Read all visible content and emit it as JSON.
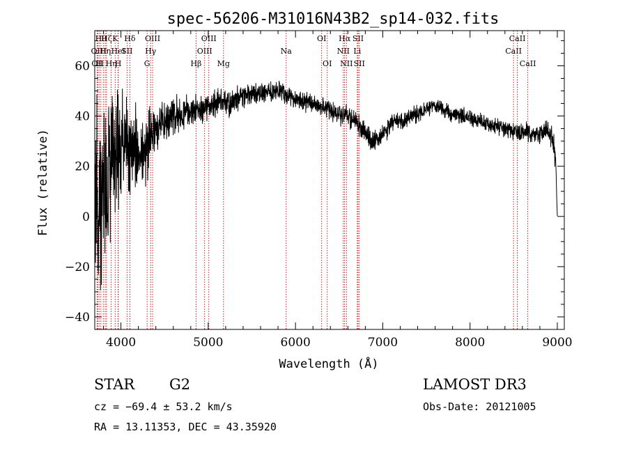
{
  "chart_data": {
    "type": "line",
    "title": "spec-56206-M31016N43B2_sp14-032.fits",
    "xlabel": "Wavelength (Å)",
    "ylabel": "Flux (relative)",
    "xlim": [
      3700,
      9080
    ],
    "ylim": [
      -45,
      74
    ],
    "xticks": [
      4000,
      5000,
      6000,
      7000,
      8000,
      9000
    ],
    "yticks": [
      -40,
      -20,
      0,
      20,
      40,
      60
    ],
    "grid": false,
    "series": [
      {
        "name": "spectrum",
        "color": "#000000",
        "continuum": [
          [
            3700,
            8
          ],
          [
            3800,
            15
          ],
          [
            3900,
            24
          ],
          [
            4000,
            28
          ],
          [
            4100,
            27
          ],
          [
            4200,
            26
          ],
          [
            4300,
            28
          ],
          [
            4400,
            35
          ],
          [
            4500,
            38
          ],
          [
            4600,
            40
          ],
          [
            4700,
            40
          ],
          [
            4800,
            42
          ],
          [
            4900,
            43
          ],
          [
            5000,
            44
          ],
          [
            5100,
            45
          ],
          [
            5200,
            45
          ],
          [
            5300,
            46
          ],
          [
            5400,
            48
          ],
          [
            5500,
            49
          ],
          [
            5600,
            49
          ],
          [
            5700,
            50
          ],
          [
            5800,
            50
          ],
          [
            5900,
            48
          ],
          [
            6000,
            46
          ],
          [
            6100,
            46
          ],
          [
            6200,
            45
          ],
          [
            6300,
            44
          ],
          [
            6400,
            42
          ],
          [
            6500,
            41
          ],
          [
            6600,
            40
          ],
          [
            6700,
            37
          ],
          [
            6800,
            33
          ],
          [
            6900,
            30
          ],
          [
            7000,
            33
          ],
          [
            7100,
            37
          ],
          [
            7200,
            38
          ],
          [
            7300,
            39
          ],
          [
            7400,
            41
          ],
          [
            7500,
            43
          ],
          [
            7600,
            44
          ],
          [
            7700,
            43
          ],
          [
            7800,
            41
          ],
          [
            7900,
            40
          ],
          [
            8000,
            39
          ],
          [
            8100,
            38
          ],
          [
            8200,
            37
          ],
          [
            8300,
            36
          ],
          [
            8400,
            35
          ],
          [
            8500,
            34
          ],
          [
            8600,
            33
          ],
          [
            8700,
            33
          ],
          [
            8800,
            33
          ],
          [
            8900,
            33
          ],
          [
            8950,
            30
          ],
          [
            8980,
            22
          ],
          [
            9000,
            0
          ]
        ],
        "noise": [
          [
            3700,
            26
          ],
          [
            3800,
            26
          ],
          [
            3900,
            20
          ],
          [
            4000,
            14
          ],
          [
            4100,
            12
          ],
          [
            4200,
            10
          ],
          [
            4300,
            10
          ],
          [
            4400,
            6
          ],
          [
            4600,
            5
          ],
          [
            5000,
            3.5
          ],
          [
            5500,
            3
          ],
          [
            6000,
            2.5
          ],
          [
            6500,
            2.5
          ],
          [
            6800,
            3
          ],
          [
            7000,
            2.5
          ],
          [
            8000,
            2
          ],
          [
            8800,
            2.5
          ],
          [
            9000,
            3
          ]
        ]
      }
    ],
    "line_markers": [
      {
        "wave": 3727,
        "row": 1,
        "label": "OII"
      },
      {
        "wave": 3734,
        "row": 2,
        "label": "OII"
      },
      {
        "wave": 3750,
        "row": 2,
        "label": "H"
      },
      {
        "wave": 3770,
        "row": 0,
        "label": "Hθ"
      },
      {
        "wave": 3798,
        "row": 1,
        "label": "H"
      },
      {
        "wave": 3820,
        "row": 1,
        "label": "Hη"
      },
      {
        "wave": 3835,
        "row": 0,
        "label": "Hζ"
      },
      {
        "wave": 3889,
        "row": 2,
        "label": "Hη"
      },
      {
        "wave": 3934,
        "row": 0,
        "label": "K"
      },
      {
        "wave": 3968,
        "row": 2,
        "label": "H"
      },
      {
        "wave": 3970,
        "row": 1,
        "label": "HeI"
      },
      {
        "wave": 4070,
        "row": 1,
        "label": "SII"
      },
      {
        "wave": 4102,
        "row": 0,
        "label": "Hδ"
      },
      {
        "wave": 4300,
        "row": 2,
        "label": "G"
      },
      {
        "wave": 4340,
        "row": 1,
        "label": "Hγ"
      },
      {
        "wave": 4363,
        "row": 0,
        "label": "OIII"
      },
      {
        "wave": 4861,
        "row": 2,
        "label": "Hβ"
      },
      {
        "wave": 4959,
        "row": 1,
        "label": "OIII"
      },
      {
        "wave": 5007,
        "row": 0,
        "label": "OIII"
      },
      {
        "wave": 5175,
        "row": 2,
        "label": "Mg"
      },
      {
        "wave": 5893,
        "row": 1,
        "label": "Na"
      },
      {
        "wave": 6300,
        "row": 0,
        "label": "OI"
      },
      {
        "wave": 6364,
        "row": 2,
        "label": "OI"
      },
      {
        "wave": 6548,
        "row": 1,
        "label": "NII"
      },
      {
        "wave": 6563,
        "row": 0,
        "label": "Hα"
      },
      {
        "wave": 6584,
        "row": 2,
        "label": "NII"
      },
      {
        "wave": 6708,
        "row": 1,
        "label": "Li"
      },
      {
        "wave": 6717,
        "row": 0,
        "label": "SII"
      },
      {
        "wave": 6731,
        "row": 2,
        "label": "SII"
      },
      {
        "wave": 8498,
        "row": 1,
        "label": "CaII"
      },
      {
        "wave": 8542,
        "row": 0,
        "label": "CaII"
      },
      {
        "wave": 8662,
        "row": 2,
        "label": "CaII"
      }
    ],
    "marker_color": "#c80000"
  },
  "info": {
    "class_label": "STAR",
    "subclass": "G2",
    "survey": "LAMOST DR3",
    "cz": "cz = −69.4 ± 53.2 km/s",
    "obs_date": "Obs-Date: 20121005",
    "coords": "RA =  13.11353, DEC =  43.35920"
  }
}
